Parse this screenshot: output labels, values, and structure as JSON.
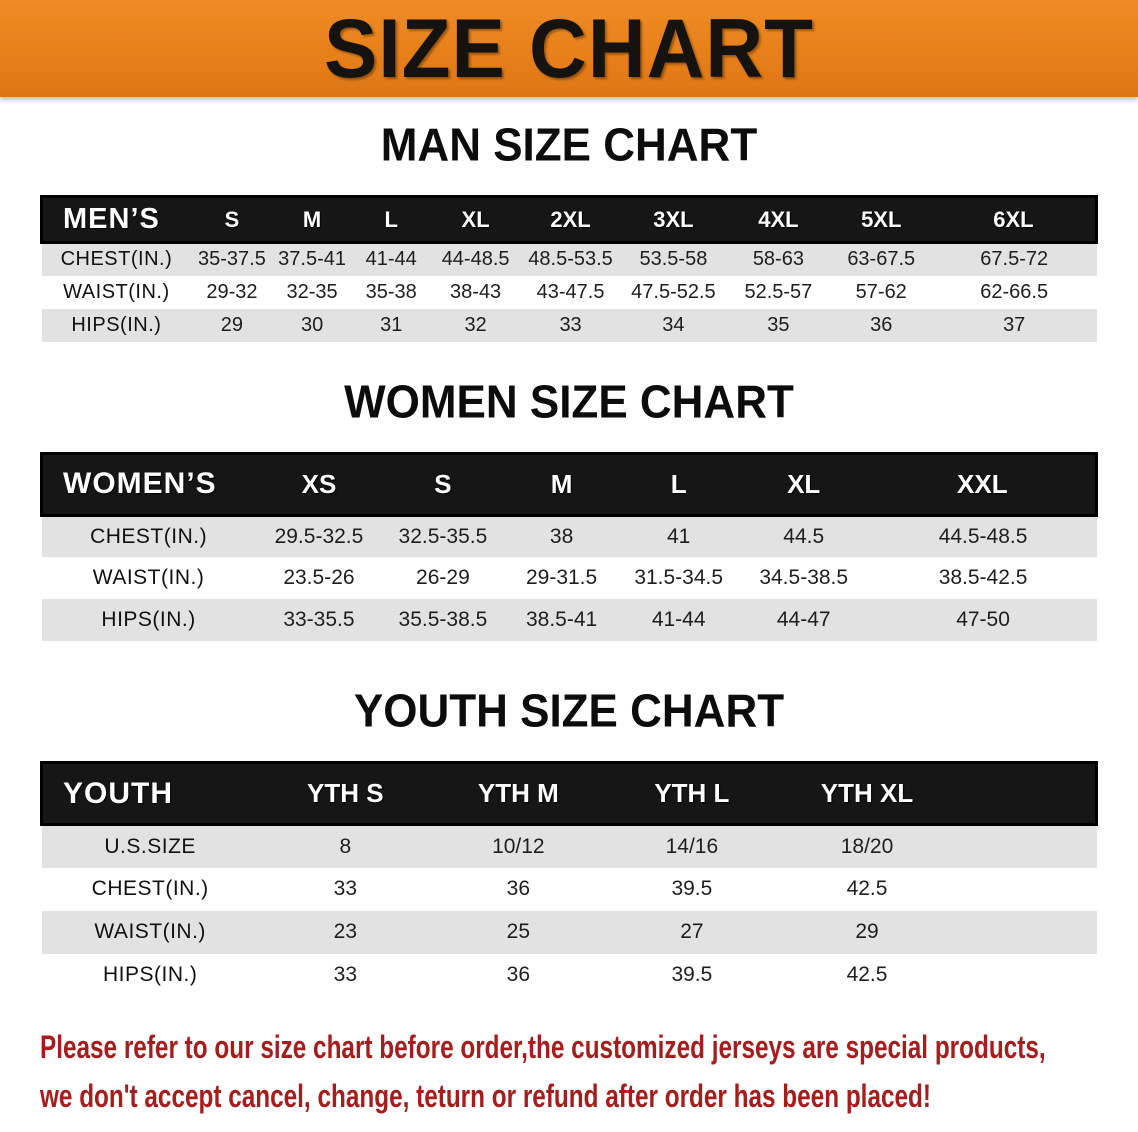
{
  "banner": {
    "title": "SIZE CHART"
  },
  "colors": {
    "banner_bg": "#e8801a",
    "table_header_bg": "#161616",
    "stripe": "#e2e2e2",
    "disclaimer_text": "#a51d1d"
  },
  "men": {
    "section_title": "MAN SIZE CHART",
    "header_label": "MEN’S",
    "sizes": [
      "S",
      "M",
      "L",
      "XL",
      "2XL",
      "3XL",
      "4XL",
      "5XL",
      "6XL"
    ],
    "col_widths": [
      "14.2%",
      "7.7%",
      "7.5%",
      "7.5%",
      "8.5%",
      "9.5%",
      "10%",
      "9.9%",
      "9.6%",
      "15.6%"
    ],
    "rows": [
      {
        "label": "CHEST(IN.)",
        "values": [
          "35-37.5",
          "37.5-41",
          "41-44",
          "44-48.5",
          "48.5-53.5",
          "53.5-58",
          "58-63",
          "63-67.5",
          "67.5-72"
        ]
      },
      {
        "label": "WAIST(IN.)",
        "values": [
          "29-32",
          "32-35",
          "35-38",
          "38-43",
          "43-47.5",
          "47.5-52.5",
          "52.5-57",
          "57-62",
          "62-66.5"
        ]
      },
      {
        "label": "HIPS(IN.)",
        "values": [
          "29",
          "30",
          "31",
          "32",
          "33",
          "34",
          "35",
          "36",
          "37"
        ]
      }
    ]
  },
  "women": {
    "section_title": "WOMEN SIZE CHART",
    "header_label": "WOMEN’S",
    "sizes": [
      "XS",
      "S",
      "M",
      "L",
      "XL",
      "XXL"
    ],
    "col_widths": [
      "20.3%",
      "12%",
      "11.5%",
      "11%",
      "11.2%",
      "12.5%",
      "21.5%"
    ],
    "rows": [
      {
        "label": "CHEST(IN.)",
        "values": [
          "29.5-32.5",
          "32.5-35.5",
          "38",
          "41",
          "44.5",
          "44.5-48.5"
        ]
      },
      {
        "label": "WAIST(IN.)",
        "values": [
          "23.5-26",
          "26-29",
          "29-31.5",
          "31.5-34.5",
          "34.5-38.5",
          "38.5-42.5"
        ]
      },
      {
        "label": "HIPS(IN.)",
        "values": [
          "33-35.5",
          "35.5-38.5",
          "38.5-41",
          "41-44",
          "44-47",
          "47-50"
        ]
      }
    ]
  },
  "youth": {
    "section_title": "YOUTH SIZE CHART",
    "header_label": "YOUTH",
    "sizes": [
      "YTH S",
      "YTH M",
      "YTH L",
      "YTH XL"
    ],
    "col_widths": [
      "20.6%",
      "16.4%",
      "16.4%",
      "16.5%",
      "16.7%",
      "13.4%"
    ],
    "rows": [
      {
        "label": "U.S.SIZE",
        "values": [
          "8",
          "10/12",
          "14/16",
          "18/20"
        ]
      },
      {
        "label": "CHEST(IN.)",
        "values": [
          "33",
          "36",
          "39.5",
          "42.5"
        ]
      },
      {
        "label": "WAIST(IN.)",
        "values": [
          "23",
          "25",
          "27",
          "29"
        ]
      },
      {
        "label": "HIPS(IN.)",
        "values": [
          "33",
          "36",
          "39.5",
          "42.5"
        ]
      }
    ]
  },
  "disclaimer": {
    "line1": "Please refer to our size chart before order,the customized jerseys are special products,",
    "line2": "we don't accept cancel, change, teturn or refund after order has been placed!"
  }
}
